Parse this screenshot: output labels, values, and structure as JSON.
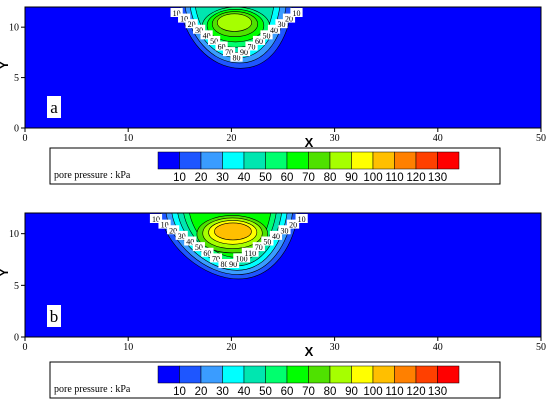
{
  "chart_data": [
    {
      "type": "heatmap",
      "panel_label": "a",
      "xlabel": "X",
      "ylabel": "Y",
      "xlim": [
        0,
        50
      ],
      "ylim": [
        0,
        12
      ],
      "xticks": [
        "0",
        "10",
        "20",
        "30",
        "40",
        "50"
      ],
      "yticks": [
        "0",
        "5",
        "10"
      ],
      "background_value": 10,
      "peak": {
        "x": 20,
        "y": 10.5,
        "value": 90
      },
      "plume": {
        "x_left_top": 14.5,
        "x_right_top": 26.5,
        "x_left_bottom": 18,
        "x_right_bottom": 24,
        "y_bottom": 5.4
      },
      "contour_labels": [
        "10",
        "10",
        "20",
        "30",
        "40",
        "50",
        "60",
        "70",
        "80",
        "90",
        "70",
        "60",
        "50",
        "40",
        "30",
        "20",
        "10"
      ],
      "colorbar": {
        "label": "pore pressure : kPa",
        "ticks": [
          "10",
          "20",
          "30",
          "40",
          "50",
          "60",
          "70",
          "80",
          "90",
          "100",
          "110",
          "120",
          "130"
        ],
        "colors": [
          "#0000ff",
          "#1e56ff",
          "#3a9cff",
          "#00ffff",
          "#00e6b0",
          "#00ff6e",
          "#00ff00",
          "#4fe100",
          "#a6ff00",
          "#ffff00",
          "#ffbf00",
          "#ff8000",
          "#ff4000",
          "#ff0000"
        ]
      }
    },
    {
      "type": "heatmap",
      "panel_label": "b",
      "xlabel": "X",
      "ylabel": "Y",
      "xlim": [
        0,
        50
      ],
      "ylim": [
        0,
        12
      ],
      "xticks": [
        "0",
        "10",
        "20",
        "30",
        "40",
        "50"
      ],
      "yticks": [
        "0",
        "5",
        "10"
      ],
      "background_value": 10,
      "peak": {
        "x": 20,
        "y": 10.2,
        "value": 110
      },
      "plume": {
        "x_left_top": 12.5,
        "x_right_top": 27,
        "x_left_bottom": 17.5,
        "x_right_bottom": 24,
        "y_bottom": 5.2
      },
      "contour_labels": [
        "10",
        "10",
        "20",
        "30",
        "40",
        "50",
        "60",
        "70",
        "80",
        "90",
        "100",
        "110",
        "70",
        "50",
        "40",
        "30",
        "20",
        "10"
      ],
      "colorbar": {
        "label": "pore pressure : kPa",
        "ticks": [
          "10",
          "20",
          "30",
          "40",
          "50",
          "60",
          "70",
          "80",
          "90",
          "100",
          "110",
          "120",
          "130"
        ],
        "colors": [
          "#0000ff",
          "#1e56ff",
          "#3a9cff",
          "#00ffff",
          "#00e6b0",
          "#00ff6e",
          "#00ff00",
          "#4fe100",
          "#a6ff00",
          "#ffff00",
          "#ffbf00",
          "#ff8000",
          "#ff4000",
          "#ff0000"
        ]
      }
    }
  ]
}
